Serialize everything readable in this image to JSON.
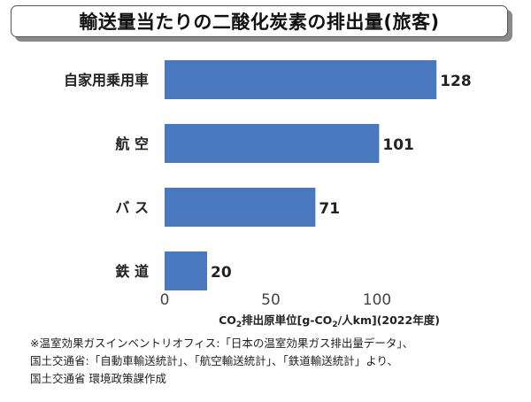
{
  "chart_data": {
    "type": "bar",
    "orientation": "horizontal",
    "title": "輸送量当たりの二酸化炭素の排出量(旅客)",
    "categories": [
      "自家用乗用車",
      "航 空",
      "バ ス",
      "鉄 道"
    ],
    "values": [
      128,
      101,
      71,
      20
    ],
    "data_labels": [
      "128",
      "101",
      "71",
      "20"
    ],
    "xlabel_parts": [
      "CO",
      "2",
      "排出原単位[g-CO",
      "2",
      "/人km](2022年度)"
    ],
    "xticks": [
      0,
      50,
      100
    ],
    "xtick_labels": [
      "0",
      "50",
      "100"
    ],
    "xlim": [
      0,
      140
    ],
    "grid": false,
    "bar_color": "#4a79c0"
  },
  "footnote": [
    "※温室効果ガスインベントリオフィス:「日本の温室効果ガス排出量データ」、",
    "国土交通省:「自動車輸送統計」、「航空輸送統計」、「鉄道輸送統計」より、",
    "国土交通省 環境政策課作成"
  ]
}
